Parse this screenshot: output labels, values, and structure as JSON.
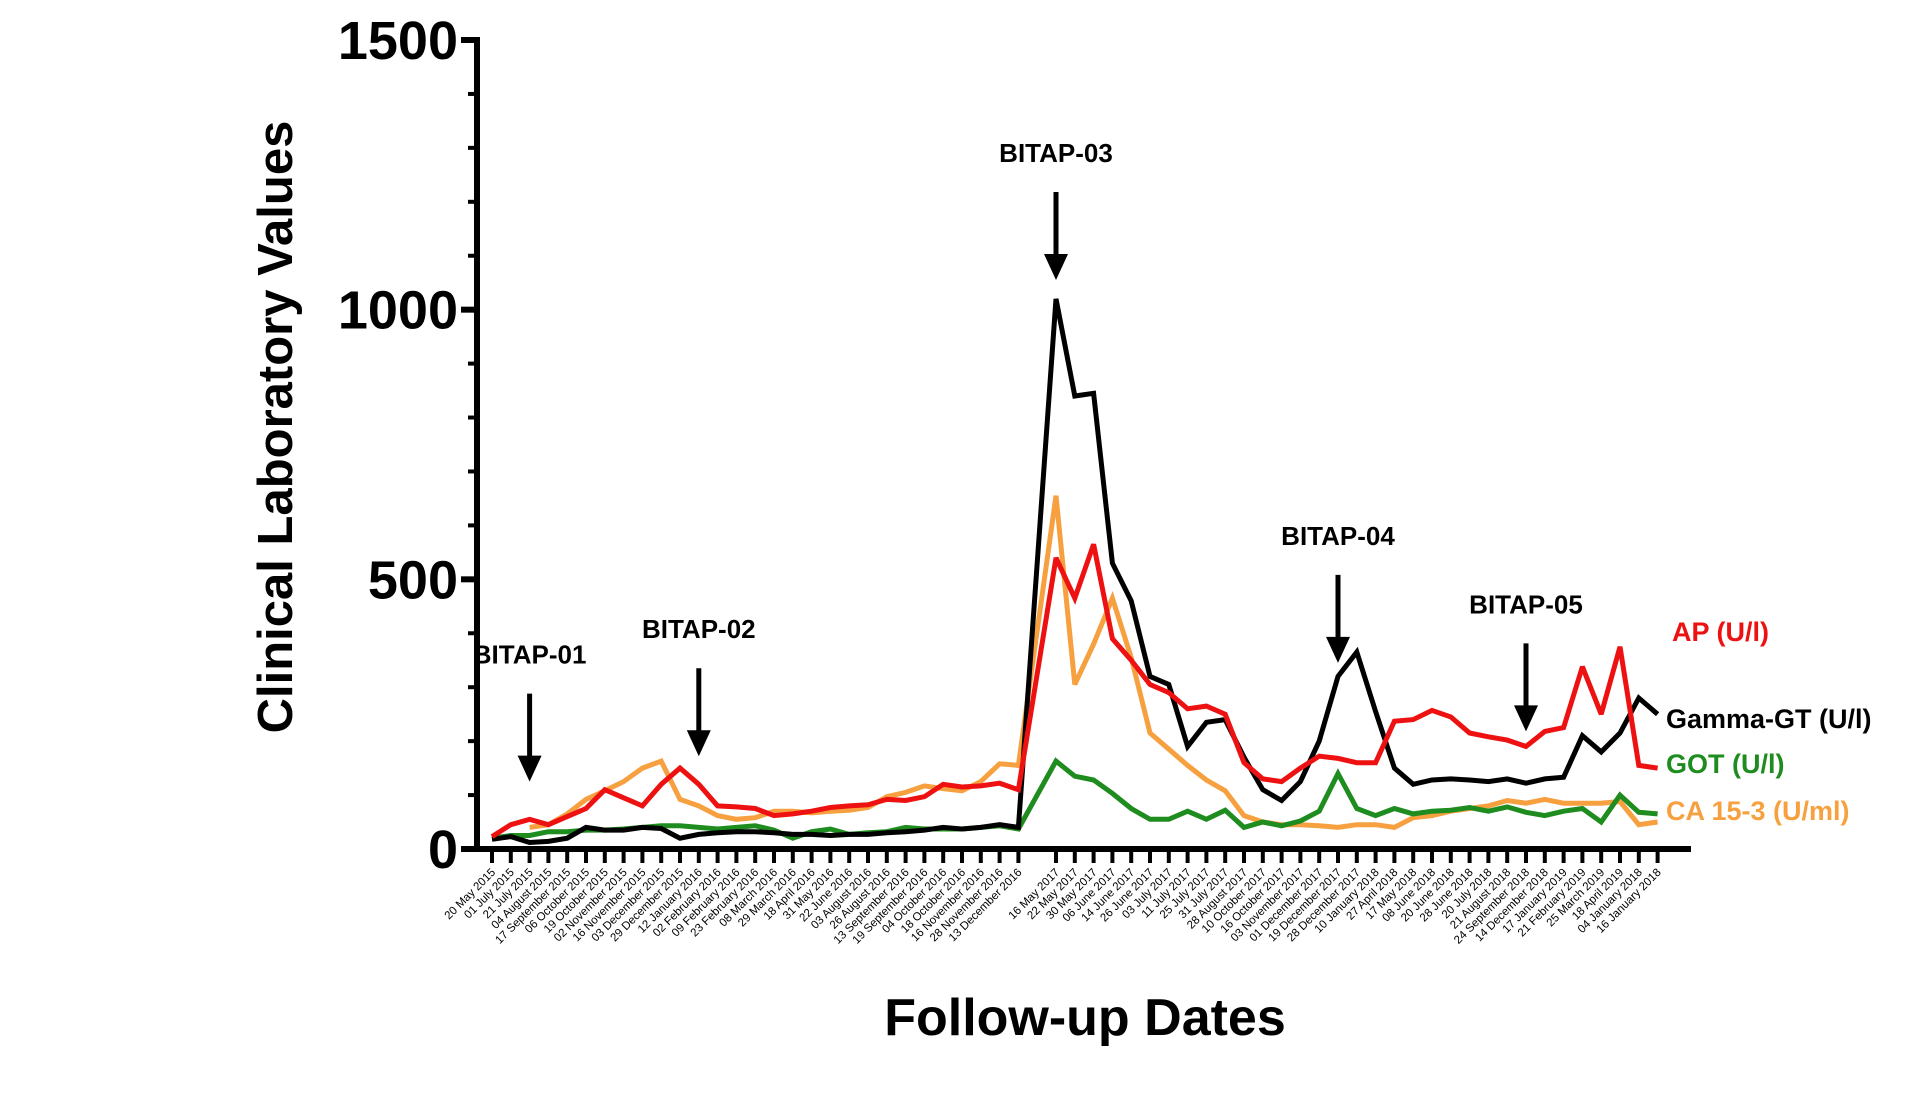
{
  "chart_data": {
    "type": "line",
    "title": "",
    "xlabel": "Follow-up Dates",
    "ylabel": "Clinical Laboratory Values",
    "ylim": [
      0,
      1500
    ],
    "yticks": [
      0,
      500,
      1000,
      1500
    ],
    "ytick_labels": [
      "0",
      "500",
      "1000",
      "1500"
    ],
    "grid": false,
    "legend_placement": "right (labels at line ends)",
    "categories": [
      "20 May 2015",
      "01 July 2015",
      "21 July 2015",
      "04 August 2015",
      "17 September 2015",
      "06 October 2015",
      "19 October 2015",
      "02 November 2015",
      "16 November 2015",
      "03 December 2015",
      "29 December 2015",
      "12 January 2016",
      "02 February 2016",
      "09 February 2016",
      "23 February 2016",
      "08 March 2016",
      "29 March 2016",
      "18 April 2016",
      "31 May 2016",
      "22 June 2016",
      "03 August 2016",
      "26 August 2016",
      "13 September 2016",
      "19 September 2016",
      "04 October 2016",
      "18 October 2016",
      "16 November 2016",
      "28 November 2016",
      "13 December 2016",
      "",
      "16 May 2017",
      "22 May 2017",
      "30 May 2017",
      "06 June 2017",
      "14 June 2017",
      "26 June 2017",
      "03 July 2017",
      "11 July 2017",
      "25 July 2017",
      "31 July 2017",
      "28 August 2017",
      "10 October 2017",
      "16 October 2017",
      "03 November 2017",
      "01 December 2017",
      "19 December 2017",
      "28 December 2017",
      "10 January 2018",
      "27 April 2018",
      "17 May 2018",
      "08 June 2018",
      "20 June 2018",
      "28 June 2018",
      "20 July 2018",
      "21 August 2018",
      "24 September 2018",
      "14 December 2018",
      "17 January 2019",
      "21 February 2019",
      "25 March 2019",
      "18 April 2019",
      "04 January 2018",
      "16 January 2018"
    ],
    "series": [
      {
        "name": "CA 15-3 (U/ml)",
        "color": "#f7a040",
        "values": [
          null,
          null,
          40,
          45,
          65,
          92,
          108,
          125,
          150,
          163,
          92,
          80,
          62,
          55,
          58,
          70,
          70,
          67,
          70,
          72,
          77,
          97,
          105,
          117,
          112,
          108,
          125,
          158,
          155,
          null,
          655,
          305,
          380,
          465,
          355,
          215,
          185,
          155,
          128,
          108,
          62,
          50,
          45,
          45,
          43,
          40,
          45,
          45,
          40,
          58,
          62,
          70,
          75,
          80,
          90,
          85,
          92,
          85,
          85,
          85,
          88,
          45,
          50
        ]
      },
      {
        "name": "GOT (U/l)",
        "color": "#1e8c1e",
        "values": [
          20,
          25,
          25,
          32,
          32,
          35,
          35,
          37,
          40,
          43,
          43,
          40,
          37,
          40,
          43,
          35,
          20,
          32,
          37,
          27,
          30,
          32,
          40,
          37,
          37,
          37,
          40,
          43,
          37,
          null,
          163,
          135,
          128,
          103,
          75,
          55,
          55,
          70,
          55,
          72,
          40,
          50,
          43,
          52,
          70,
          140,
          75,
          62,
          75,
          65,
          70,
          72,
          77,
          70,
          78,
          68,
          62,
          70,
          75,
          50,
          100,
          68,
          65
        ]
      },
      {
        "name": "Gamma-GT (U/l)",
        "color": "#000000",
        "values": [
          18,
          23,
          12,
          14,
          20,
          40,
          35,
          35,
          40,
          38,
          20,
          27,
          30,
          32,
          32,
          30,
          27,
          27,
          25,
          27,
          27,
          30,
          32,
          35,
          40,
          37,
          40,
          45,
          40,
          null,
          1020,
          840,
          845,
          530,
          460,
          320,
          305,
          190,
          235,
          240,
          170,
          110,
          90,
          125,
          200,
          320,
          365,
          255,
          150,
          120,
          128,
          130,
          128,
          125,
          130,
          122,
          130,
          133,
          210,
          180,
          215,
          280,
          250
        ]
      },
      {
        "name": "AP (U/l)",
        "color": "#ee1111",
        "values": [
          23,
          45,
          55,
          45,
          60,
          75,
          110,
          95,
          80,
          120,
          150,
          120,
          80,
          78,
          75,
          62,
          65,
          70,
          77,
          80,
          82,
          92,
          90,
          97,
          120,
          115,
          117,
          122,
          110,
          null,
          540,
          465,
          565,
          390,
          350,
          305,
          290,
          260,
          265,
          250,
          160,
          130,
          125,
          150,
          172,
          168,
          160,
          160,
          237,
          240,
          257,
          245,
          215,
          208,
          202,
          190,
          218,
          225,
          338,
          250,
          375,
          155,
          150
        ]
      }
    ],
    "legend_order": [
      "AP (U/l)",
      "Gamma-GT (U/l)",
      "GOT (U/l)",
      "CA 15-3 (U/ml)"
    ],
    "annotations": [
      {
        "label": "BITAP-01",
        "index": 2,
        "arrow_tip_value": 125
      },
      {
        "label": "BITAP-02",
        "index": 11,
        "arrow_tip_value": 172
      },
      {
        "label": "BITAP-03",
        "index": 30,
        "arrow_tip_value": 1055
      },
      {
        "label": "BITAP-04",
        "index": 45,
        "arrow_tip_value": 345
      },
      {
        "label": "BITAP-05",
        "index": 55,
        "arrow_tip_value": 218
      }
    ]
  }
}
